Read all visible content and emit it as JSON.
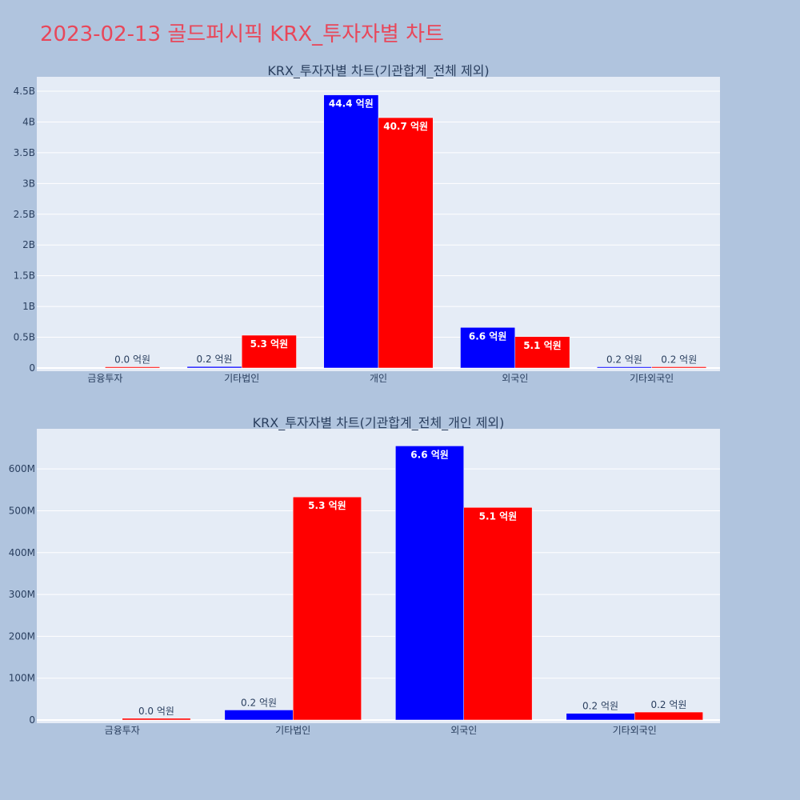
{
  "title": "2023-02-13 골드퍼시픽 KRX_투자자별 차트",
  "colors": {
    "buy": "#0000ff",
    "sell": "#ff0000",
    "plot_bg": "#e5ecf6",
    "page_bg": "#b0c4de",
    "title": "#e8475a"
  },
  "chart_data": [
    {
      "type": "bar",
      "title": "KRX_투자자별 차트(기관합계_전체 제외)",
      "categories": [
        "금융투자",
        "기타법인",
        "개인",
        "외국인",
        "기타외국인"
      ],
      "series": [
        {
          "values": [
            0,
            24000000,
            4440000000,
            660000000,
            16000000
          ],
          "labels": [
            "",
            "0.2 억원",
            "44.4 억원",
            "6.6 억원",
            "0.2 억원"
          ]
        },
        {
          "values": [
            4000000,
            533000000,
            4070000000,
            510000000,
            20000000
          ],
          "labels": [
            "0.0 억원",
            "5.3 억원",
            "40.7 억원",
            "5.1 억원",
            "0.2 억원"
          ]
        }
      ],
      "ylim": [
        0,
        4500000000
      ],
      "yticks": [
        0,
        500000000,
        1000000000,
        1500000000,
        2000000000,
        2500000000,
        3000000000,
        3500000000,
        4000000000,
        4500000000
      ],
      "yticklabels": [
        "0",
        "0.5B",
        "1B",
        "1.5B",
        "2B",
        "2.5B",
        "3B",
        "3.5B",
        "4B",
        "4.5B"
      ],
      "grid": true
    },
    {
      "type": "bar",
      "title": "KRX_투자자별 차트(기관합계_전체_개인 제외)",
      "categories": [
        "금융투자",
        "기타법인",
        "외국인",
        "기타외국인"
      ],
      "series": [
        {
          "values": [
            0,
            24000000,
            655000000,
            16000000
          ],
          "labels": [
            "",
            "0.2 억원",
            "6.6 억원",
            "0.2 억원"
          ]
        },
        {
          "values": [
            4000000,
            533000000,
            508000000,
            19000000
          ],
          "labels": [
            "0.0 억원",
            "5.3 억원",
            "5.1 억원",
            "0.2 억원"
          ]
        }
      ],
      "ylim": [
        0,
        650000000
      ],
      "yticks": [
        0,
        100000000,
        200000000,
        300000000,
        400000000,
        500000000,
        600000000
      ],
      "yticklabels": [
        "0",
        "100M",
        "200M",
        "300M",
        "400M",
        "500M",
        "600M"
      ],
      "grid": true
    }
  ]
}
